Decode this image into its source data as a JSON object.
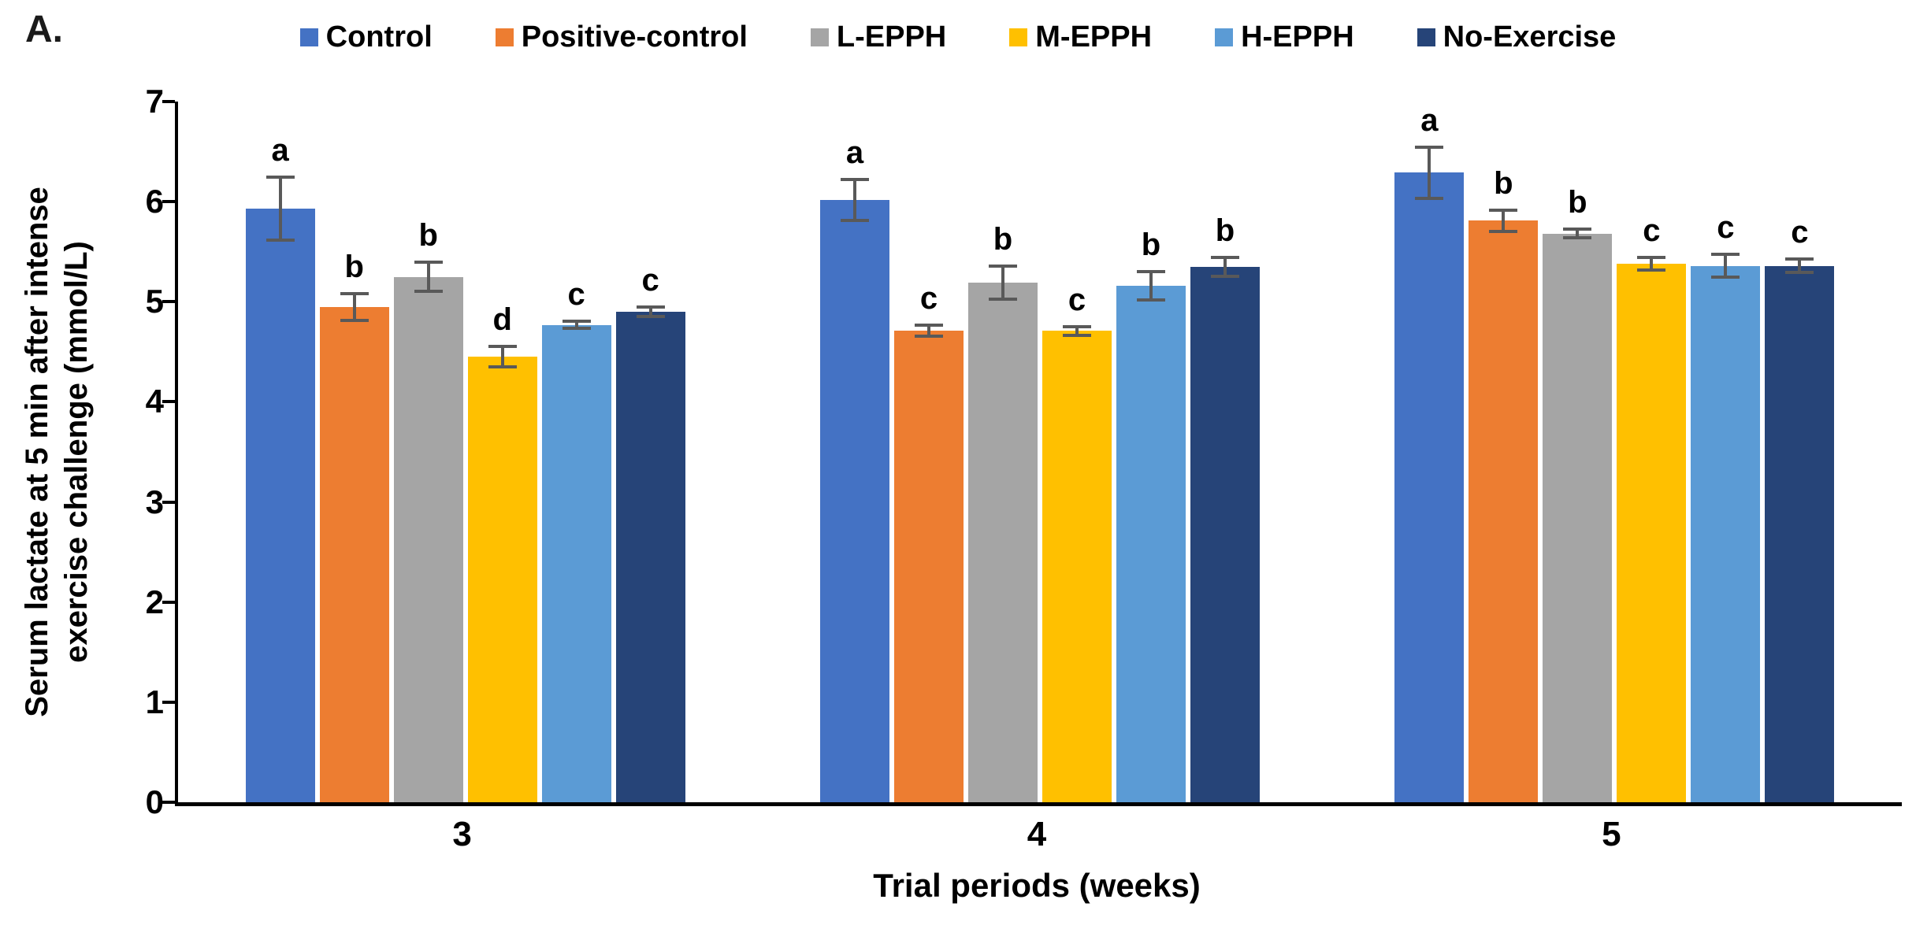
{
  "panel_label": "A.",
  "chart_data": {
    "type": "bar",
    "title": "",
    "xlabel": "Trial periods (weeks)",
    "ylabel": "Serum lactate at 5 min after intense exercise challenge (mmol/L)",
    "ylabel_line1": "Serum lactate at 5 min after intense",
    "ylabel_line2": "exercise challenge (mmol/L)",
    "ylim": [
      0,
      7
    ],
    "yticks": [
      0,
      1,
      2,
      3,
      4,
      5,
      6,
      7
    ],
    "categories": [
      "3",
      "4",
      "5"
    ],
    "grid": false,
    "legend_position": "top",
    "error_bar_color": "#595959",
    "series": [
      {
        "name": "Control",
        "color": "#4472C4",
        "values": [
          5.93,
          6.02,
          6.29
        ],
        "errors": [
          0.33,
          0.22,
          0.27
        ],
        "sig_letters": [
          "a",
          "a",
          "a"
        ]
      },
      {
        "name": "Positive-control",
        "color": "#ED7D31",
        "values": [
          4.95,
          4.71,
          5.81
        ],
        "errors": [
          0.15,
          0.07,
          0.12
        ],
        "sig_letters": [
          "b",
          "c",
          "b"
        ]
      },
      {
        "name": "L-EPPH",
        "color": "#A5A5A5",
        "values": [
          5.25,
          5.19,
          5.68
        ],
        "errors": [
          0.16,
          0.18,
          0.06
        ],
        "sig_letters": [
          "b",
          "b",
          "b"
        ]
      },
      {
        "name": "M-EPPH",
        "color": "#FFC000",
        "values": [
          4.45,
          4.71,
          5.38
        ],
        "errors": [
          0.12,
          0.06,
          0.08
        ],
        "sig_letters": [
          "d",
          "c",
          "c"
        ]
      },
      {
        "name": "H-EPPH",
        "color": "#5B9BD5",
        "values": [
          4.77,
          5.16,
          5.36
        ],
        "errors": [
          0.05,
          0.16,
          0.13
        ],
        "sig_letters": [
          "c",
          "b",
          "c"
        ]
      },
      {
        "name": "No-Exercise",
        "color": "#264478",
        "values": [
          4.9,
          5.35,
          5.36
        ],
        "errors": [
          0.06,
          0.11,
          0.08
        ],
        "sig_letters": [
          "c",
          "b",
          "c"
        ]
      }
    ]
  }
}
